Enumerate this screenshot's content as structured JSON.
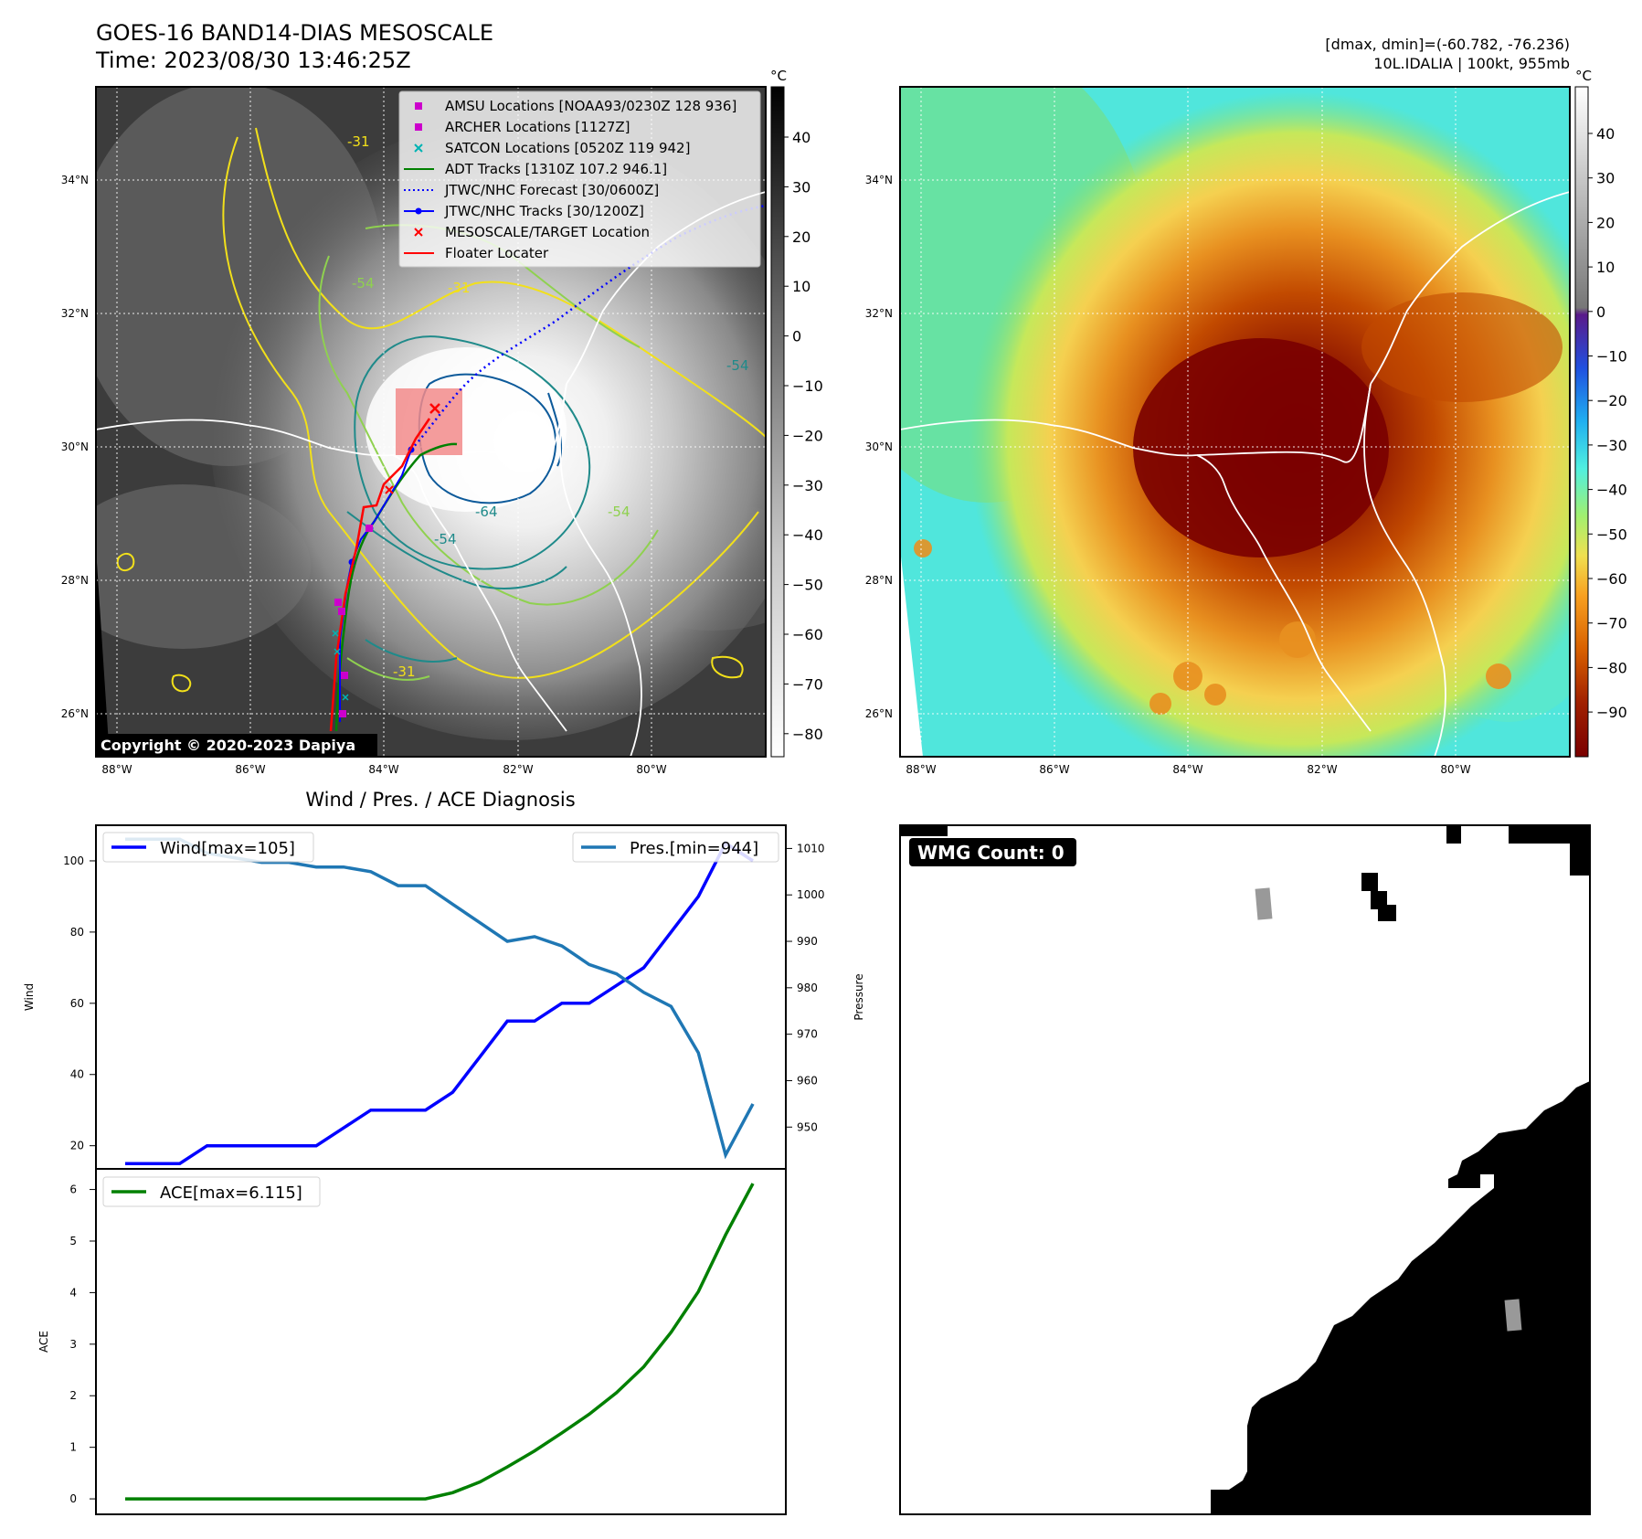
{
  "header": {
    "title": "GOES-16 BAND14-DIAS MESOSCALE",
    "time": "Time: 2023/08/30 13:46:25Z",
    "dmax_dmin": "[dmax, dmin]=(-60.782, -76.236)",
    "storm": "10L.IDALIA | 100kt, 955mb"
  },
  "map_left": {
    "lat_ticks": [
      "34°N",
      "32°N",
      "30°N",
      "28°N",
      "26°N"
    ],
    "lon_ticks": [
      "88°W",
      "86°W",
      "84°W",
      "82°W",
      "80°W"
    ],
    "colorbar_unit": "°C",
    "colorbar_ticks": [
      "40",
      "30",
      "20",
      "10",
      "0",
      "−10",
      "−20",
      "−30",
      "−40",
      "−50",
      "−60",
      "−70",
      "−80"
    ],
    "contour_labels": [
      "-31",
      "-54",
      "-64",
      "-54",
      "-54",
      "-31",
      "-31",
      "-54"
    ],
    "copyright": "Copyright © 2020-2023 Dapiya",
    "legend": [
      {
        "label": "AMSU Locations [NOAA93/0230Z 128 936]",
        "marker": "square",
        "color": "#cc00cc"
      },
      {
        "label": "ARCHER Locations [1127Z]",
        "marker": "square",
        "color": "#cc00cc"
      },
      {
        "label": "SATCON Locations [0520Z 119 942]",
        "marker": "x",
        "color": "#00b3b3"
      },
      {
        "label": "ADT Tracks [1310Z 107.2 946.1]",
        "marker": "line",
        "color": "#008000"
      },
      {
        "label": "JTWC/NHC Forecast [30/0600Z]",
        "marker": "dotted",
        "color": "#0000ff"
      },
      {
        "label": "JTWC/NHC Tracks [30/1200Z]",
        "marker": "line-dot",
        "color": "#0000ff"
      },
      {
        "label": "MESOSCALE/TARGET Location",
        "marker": "x",
        "color": "#ff0000"
      },
      {
        "label": "Floater Locater",
        "marker": "line",
        "color": "#ff0000"
      }
    ]
  },
  "map_right": {
    "lat_ticks": [
      "34°N",
      "32°N",
      "30°N",
      "28°N",
      "26°N"
    ],
    "lon_ticks": [
      "88°W",
      "86°W",
      "84°W",
      "82°W",
      "80°W"
    ],
    "colorbar_unit": "°C",
    "colorbar_ticks": [
      "40",
      "30",
      "20",
      "10",
      "0",
      "−10",
      "−20",
      "−30",
      "−40",
      "−50",
      "−60",
      "−70",
      "−80",
      "−90"
    ]
  },
  "chart_data": [
    {
      "type": "line",
      "title": "Wind / Pres. / ACE Diagnosis",
      "ylabel": "Wind",
      "ylabel_right": "Pressure",
      "ylim": [
        13.5,
        110
      ],
      "ylim_right": [
        941,
        1015
      ],
      "yticks": [
        "100",
        "80",
        "60",
        "40",
        "20"
      ],
      "yticks_right": [
        "1010",
        "1000",
        "990",
        "980",
        "970",
        "960",
        "950"
      ],
      "series": [
        {
          "name": "Wind[max=105]",
          "color": "#0000ff",
          "axis": "left",
          "values": [
            15,
            15,
            15,
            20,
            20,
            20,
            20,
            20,
            25,
            30,
            30,
            30,
            35,
            45,
            55,
            55,
            60,
            60,
            65,
            70,
            80,
            90,
            105,
            100
          ]
        },
        {
          "name": "Pres.[min=944]",
          "color": "#1f77b4",
          "axis": "right",
          "values": [
            1012,
            1012,
            1012,
            1009,
            1008,
            1007,
            1007,
            1006,
            1006,
            1005,
            1002,
            1002,
            998,
            994,
            990,
            991,
            989,
            985,
            983,
            979,
            976,
            966,
            944,
            955
          ]
        }
      ]
    },
    {
      "type": "line",
      "ylabel": "ACE",
      "ylim": [
        -0.3,
        6.4
      ],
      "yticks": [
        "6",
        "5",
        "4",
        "3",
        "2",
        "1",
        "0"
      ],
      "series": [
        {
          "name": "ACE[max=6.115]",
          "color": "#008000",
          "values": [
            0,
            0,
            0,
            0,
            0,
            0,
            0,
            0,
            0,
            0,
            0,
            0,
            0.12,
            0.33,
            0.62,
            0.93,
            1.28,
            1.64,
            2.06,
            2.56,
            3.23,
            4.02,
            5.12,
            6.115
          ]
        }
      ]
    }
  ],
  "wmg_panel": {
    "label": "WMG Count: 0"
  }
}
